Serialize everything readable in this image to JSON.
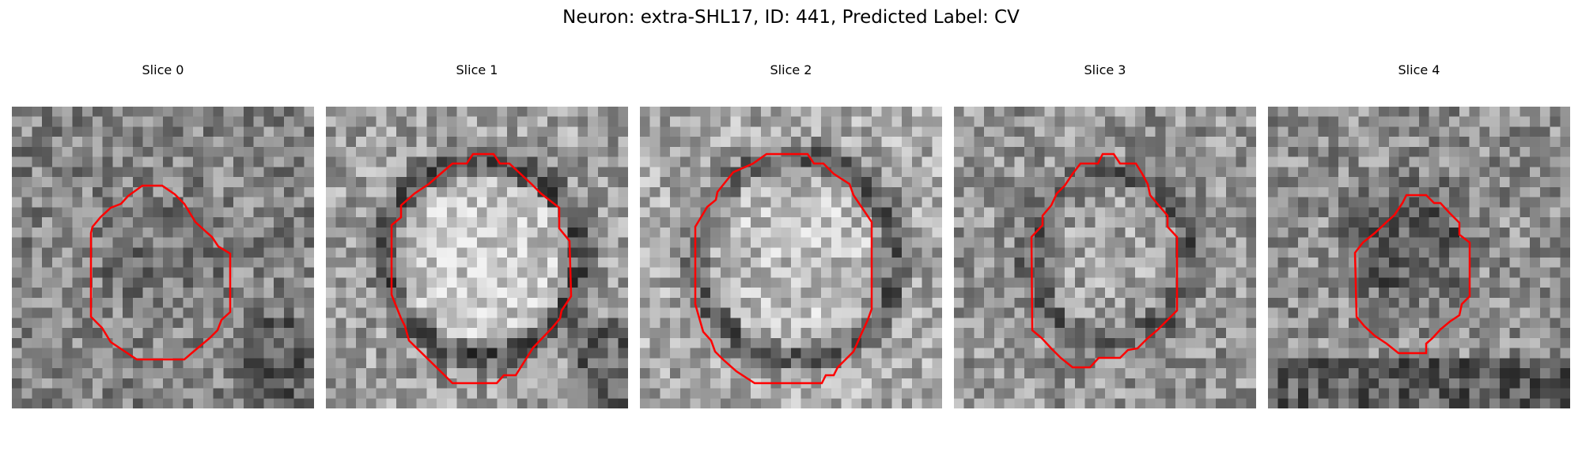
{
  "figure": {
    "title": "Neuron: extra-SHL17, ID: 441, Predicted Label: CV"
  },
  "colors": {
    "contour": "#ff0000",
    "background": "#ffffff"
  },
  "slices": [
    {
      "title": "Slice 0",
      "contour_shape": "octagon-small"
    },
    {
      "title": "Slice 1",
      "contour_shape": "octagon-large"
    },
    {
      "title": "Slice 2",
      "contour_shape": "octagon-large"
    },
    {
      "title": "Slice 3",
      "contour_shape": "octagon-large"
    },
    {
      "title": "Slice 4",
      "contour_shape": "octagon-small"
    }
  ]
}
